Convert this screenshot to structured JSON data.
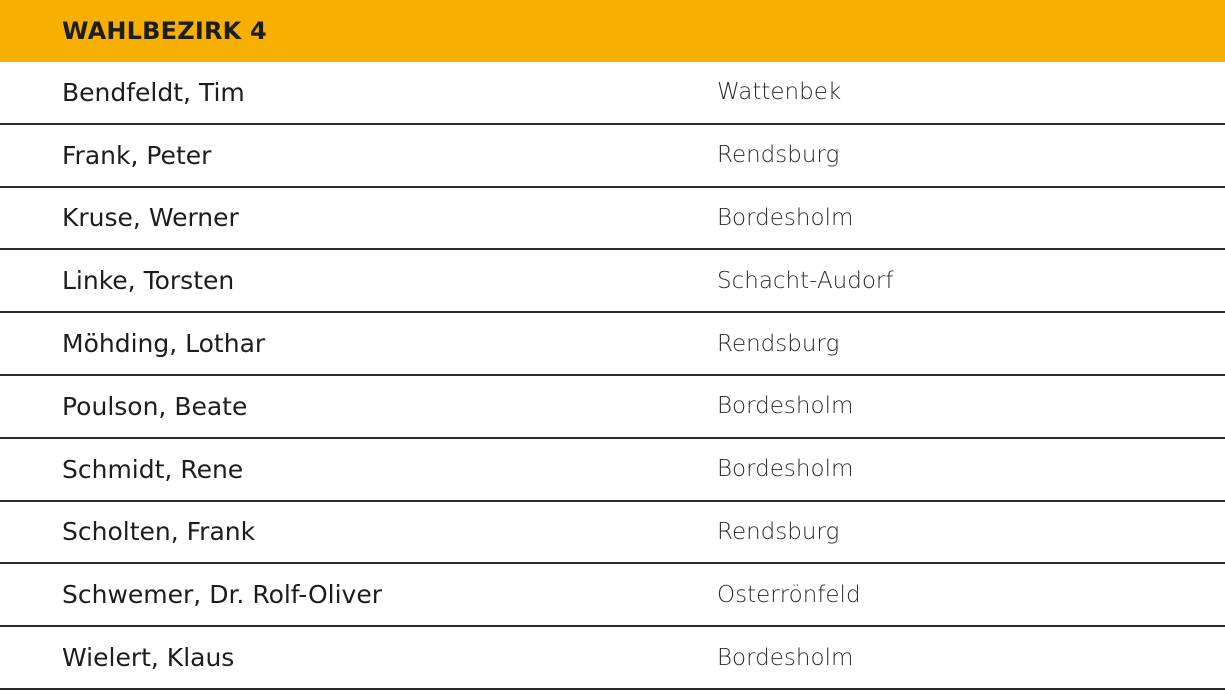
{
  "header": {
    "title": "WAHLBEZIRK 4",
    "color": "#f8b000"
  },
  "rows": [
    {
      "name": "Bendfeldt, Tim",
      "place": "Wattenbek"
    },
    {
      "name": "Frank, Peter",
      "place": "Rendsburg"
    },
    {
      "name": "Kruse, Werner",
      "place": "Bordesholm"
    },
    {
      "name": "Linke, Torsten",
      "place": "Schacht-Audorf"
    },
    {
      "name": "Möhding, Lothar",
      "place": "Rendsburg"
    },
    {
      "name": "Poulson, Beate",
      "place": "Bordesholm"
    },
    {
      "name": "Schmidt, Rene",
      "place": "Bordesholm"
    },
    {
      "name": "Scholten, Frank",
      "place": "Rendsburg"
    },
    {
      "name": "Schwemer, Dr. Rolf-Oliver",
      "place": "Osterrönfeld"
    },
    {
      "name": "Wielert, Klaus",
      "place": "Bordesholm"
    }
  ]
}
